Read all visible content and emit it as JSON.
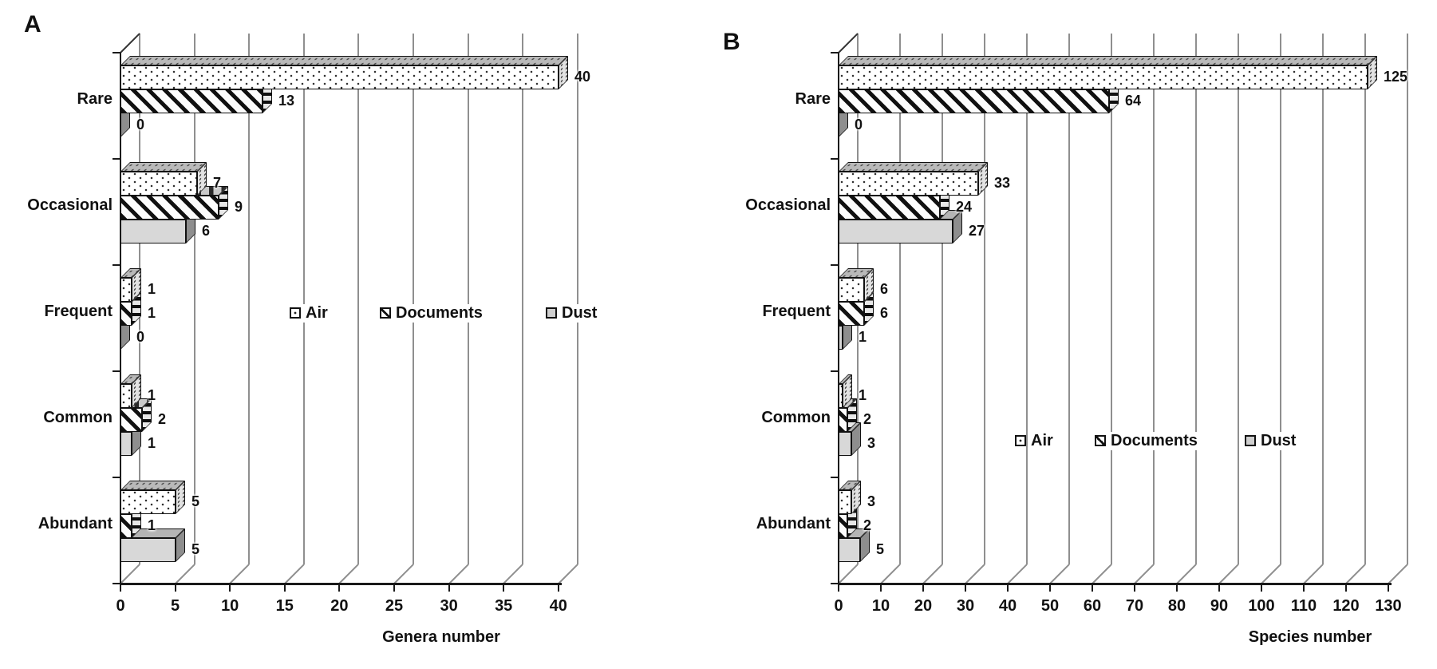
{
  "panel_letters": [
    "A",
    "B"
  ],
  "legend": {
    "items": [
      {
        "label": "Air",
        "pattern": "dots"
      },
      {
        "label": "Documents",
        "pattern": "diagonal-hatch"
      },
      {
        "label": "Dust",
        "pattern": "solid-gray"
      }
    ]
  },
  "colors": {
    "dust_fill": "#d8d8d8",
    "grid_line": "#8f8f8f",
    "axis_line": "#1a1a1a",
    "bar_edge": "#111111"
  },
  "chart_data": [
    {
      "type": "bar",
      "orientation": "horizontal",
      "panel": "A",
      "title": "",
      "xlabel": "Genera number",
      "ylabel": "",
      "categories": [
        "Rare",
        "Occasional",
        "Frequent",
        "Common",
        "Abundant"
      ],
      "series": [
        {
          "name": "Air",
          "pattern": "dots",
          "values": [
            40,
            7,
            1,
            1,
            5
          ]
        },
        {
          "name": "Documents",
          "pattern": "diagonal-hatch",
          "values": [
            13,
            9,
            1,
            2,
            1
          ]
        },
        {
          "name": "Dust",
          "pattern": "solid-gray",
          "values": [
            0,
            6,
            0,
            1,
            5
          ]
        }
      ],
      "xlim": [
        0,
        40
      ],
      "xtick_step": 5,
      "xticks": [
        0,
        5,
        10,
        15,
        20,
        25,
        30,
        35,
        40
      ],
      "grid": true,
      "legend_position": "inside-middle-right",
      "bar_labels_shown": true
    },
    {
      "type": "bar",
      "orientation": "horizontal",
      "panel": "B",
      "title": "",
      "xlabel": "Species number",
      "ylabel": "",
      "categories": [
        "Rare",
        "Occasional",
        "Frequent",
        "Common",
        "Abundant"
      ],
      "series": [
        {
          "name": "Air",
          "pattern": "dots",
          "values": [
            125,
            33,
            6,
            1,
            3
          ]
        },
        {
          "name": "Documents",
          "pattern": "diagonal-hatch",
          "values": [
            64,
            24,
            6,
            2,
            2
          ]
        },
        {
          "name": "Dust",
          "pattern": "solid-gray",
          "values": [
            0,
            27,
            1,
            3,
            5
          ]
        }
      ],
      "xlim": [
        0,
        130
      ],
      "xtick_step": 10,
      "xticks": [
        0,
        10,
        20,
        30,
        40,
        50,
        60,
        70,
        80,
        90,
        100,
        110,
        120,
        130
      ],
      "grid": true,
      "legend_position": "inside-lower-right",
      "bar_labels_shown": true
    }
  ]
}
